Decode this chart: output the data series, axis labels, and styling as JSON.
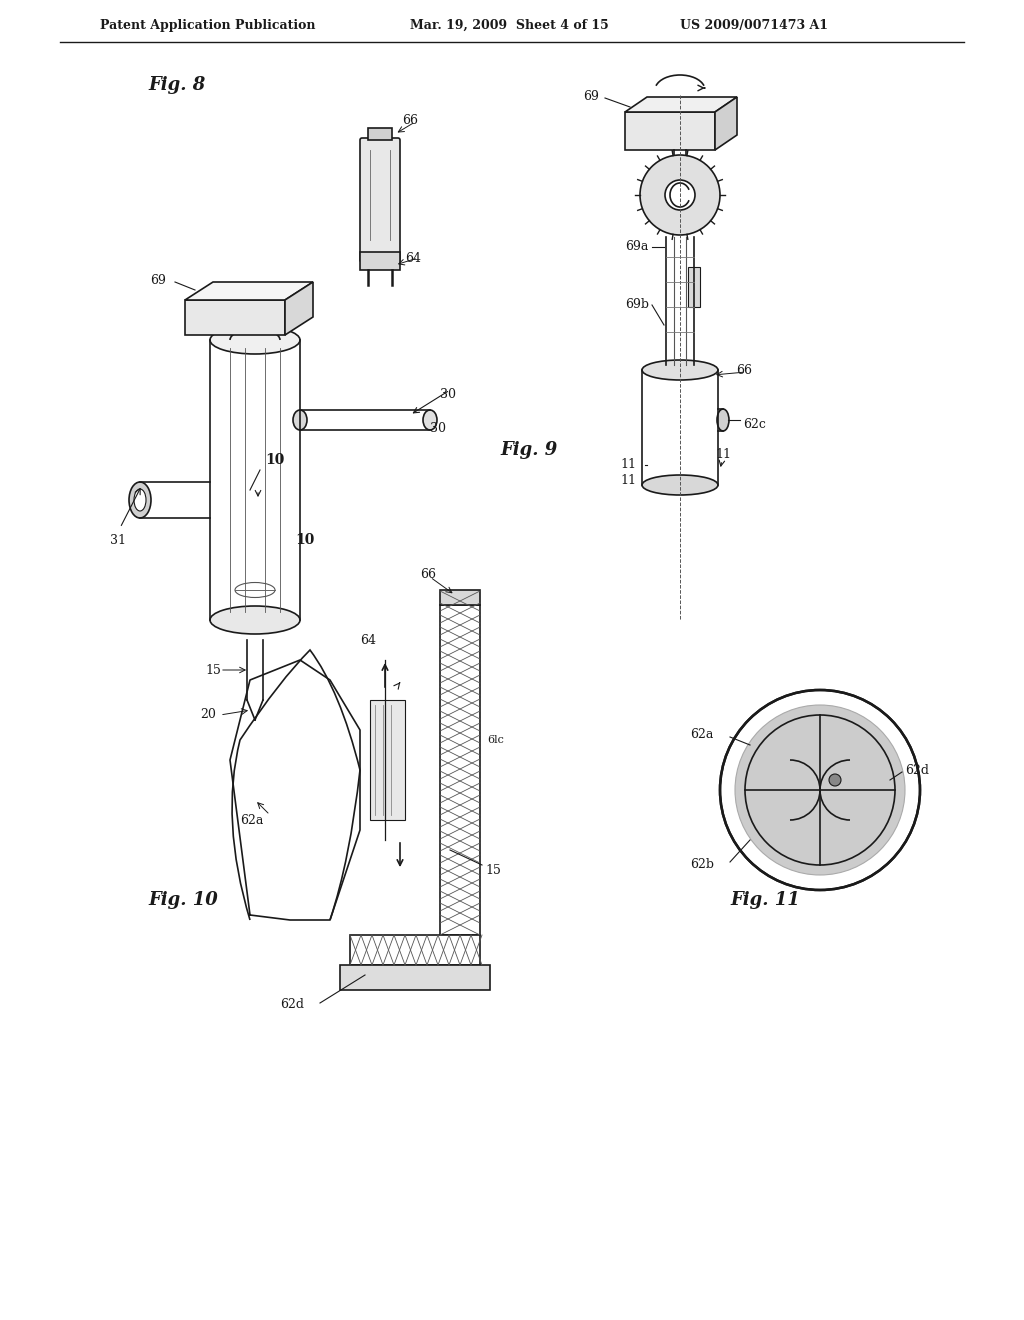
{
  "bg_color": "#ffffff",
  "line_color": "#1a1a1a",
  "header_text1": "Patent Application Publication",
  "header_text2": "Mar. 19, 2009  Sheet 4 of 15",
  "header_text3": "US 2009/0071473 A1",
  "fig8_label": "Fig. 8",
  "fig9_label": "Fig. 9",
  "fig10_label": "Fig. 10",
  "fig11_label": "Fig. 11"
}
